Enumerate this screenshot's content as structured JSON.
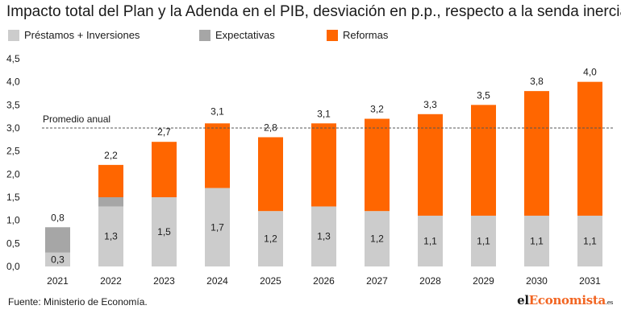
{
  "title": "Impacto total del Plan y la Adenda en el PIB, desviación en p.p., respecto a la senda inercial",
  "legend": [
    {
      "label": "Préstamos + Inversiones",
      "color": "#cccccc"
    },
    {
      "label": "Expectativas",
      "color": "#a6a6a6"
    },
    {
      "label": "Reformas",
      "color": "#ff6600"
    }
  ],
  "chart_data": {
    "type": "bar",
    "stacked": true,
    "categories": [
      "2021",
      "2022",
      "2023",
      "2024",
      "2025",
      "2026",
      "2027",
      "2028",
      "2029",
      "2030",
      "2031"
    ],
    "series": [
      {
        "name": "Préstamos + Inversiones",
        "color": "#cccccc",
        "values": [
          0.3,
          1.3,
          1.5,
          1.7,
          1.2,
          1.3,
          1.2,
          1.1,
          1.1,
          1.1,
          1.1
        ]
      },
      {
        "name": "Expectativas",
        "color": "#a6a6a6",
        "values": [
          0.55,
          0.2,
          0,
          0,
          0,
          0,
          0,
          0,
          0,
          0,
          0
        ]
      },
      {
        "name": "Reformas",
        "color": "#ff6600",
        "values": [
          0,
          0.7,
          1.2,
          1.4,
          1.6,
          1.8,
          2.0,
          2.2,
          2.4,
          2.7,
          2.9
        ]
      }
    ],
    "base_labels": [
      "0,3",
      "1,3",
      "1,5",
      "1,7",
      "1,2",
      "1,3",
      "1,2",
      "1,1",
      "1,1",
      "1,1",
      "1,1"
    ],
    "total_labels": [
      "0,8",
      "2,2",
      "2,7",
      "3,1",
      "2,8",
      "3,1",
      "3,2",
      "3,3",
      "3,5",
      "3,8",
      "4,0"
    ],
    "totals": [
      0.85,
      2.2,
      2.7,
      3.15,
      2.8,
      3.1,
      3.2,
      3.3,
      3.5,
      3.8,
      4.0
    ],
    "ylim": [
      0,
      4.5
    ],
    "yticks": [
      0.0,
      0.5,
      1.0,
      1.5,
      2.0,
      2.5,
      3.0,
      3.5,
      4.0,
      4.5
    ],
    "ytick_labels": [
      "0,0",
      "0,5",
      "1,0",
      "1,5",
      "2,0",
      "2,5",
      "3,0",
      "3,5",
      "4,0",
      "4,5"
    ],
    "reference_line": {
      "label": "Promedio anual",
      "value": 3.0
    },
    "grid": false,
    "legend_position": "top"
  },
  "footer": {
    "source": "Fuente: Ministerio de Economía.",
    "logo_prefix": "el",
    "logo_accent": "Economista",
    "logo_suffix": ".es"
  }
}
